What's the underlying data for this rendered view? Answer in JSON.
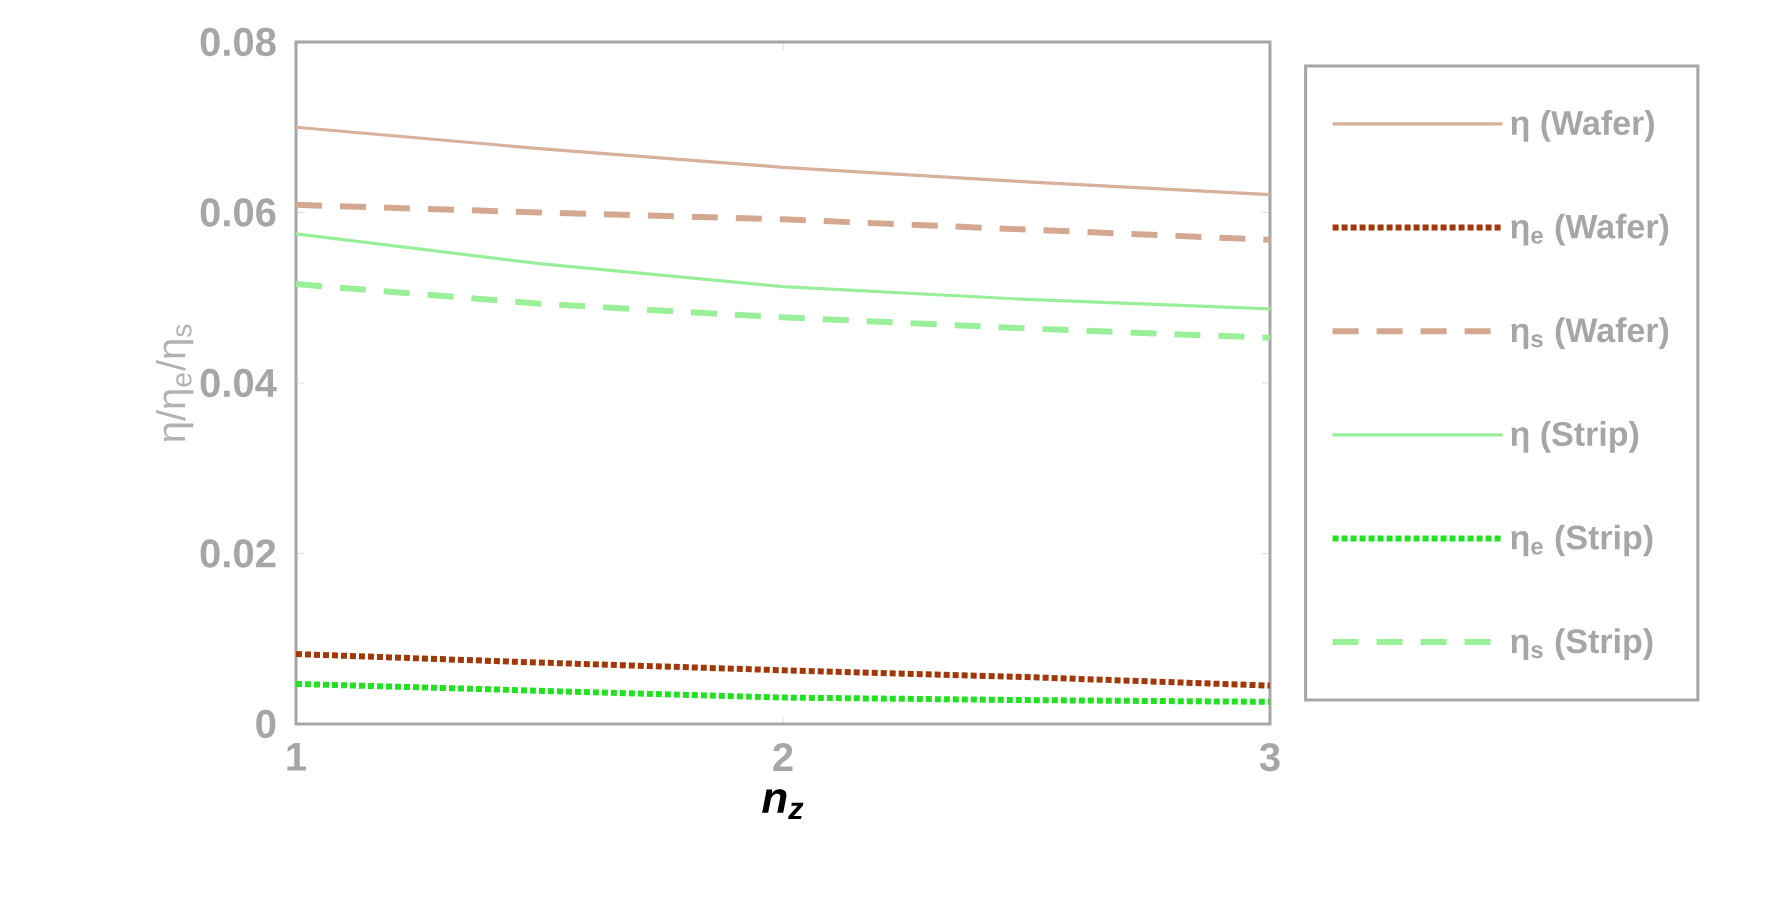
{
  "chart_data": {
    "type": "line",
    "xlabel": "n$_{z}$",
    "ylabel": "η/η$_{e}$/η$_{s}$",
    "x": [
      1,
      1.5,
      2,
      2.5,
      3
    ],
    "xlim": [
      1,
      3
    ],
    "xticks": [
      1,
      2,
      3
    ],
    "ylim": [
      0,
      0.08
    ],
    "yticks": [
      0,
      0.02,
      0.04,
      0.06,
      0.08
    ],
    "legend": "right",
    "series": [
      {
        "name": "η (Wafer)",
        "color": "#d8b09c",
        "line_style": "solid",
        "values": [
          0.07,
          0.0675,
          0.0653,
          0.0636,
          0.0621
        ]
      },
      {
        "name": "η$_{e}$ (Wafer)",
        "color": "#a0380a",
        "line_style": "dotted",
        "values": [
          0.0082,
          0.0072,
          0.0063,
          0.0055,
          0.0045
        ]
      },
      {
        "name": "η$_{s}$ (Wafer)",
        "color": "#d4a890",
        "line_style": "dashed",
        "values": [
          0.0609,
          0.06,
          0.0592,
          0.058,
          0.0568
        ]
      },
      {
        "name": "η (Strip)",
        "color": "#99ee99",
        "line_style": "solid",
        "values": [
          0.0575,
          0.054,
          0.0513,
          0.0498,
          0.0487
        ]
      },
      {
        "name": "η$_{e}$ (Strip)",
        "color": "#22e022",
        "line_style": "dotted",
        "values": [
          0.0047,
          0.0039,
          0.0031,
          0.0028,
          0.0026
        ]
      },
      {
        "name": "η$_{s}$ (Strip)",
        "color": "#99f099",
        "line_style": "dashed",
        "values": [
          0.0516,
          0.0493,
          0.0477,
          0.0464,
          0.0453
        ]
      }
    ]
  }
}
